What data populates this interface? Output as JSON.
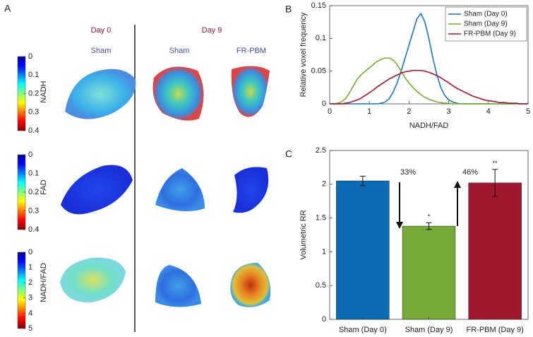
{
  "panel_a": {
    "label": "A",
    "groups": [
      {
        "title": "Day 0",
        "columns": [
          "Sham"
        ]
      },
      {
        "title": "Day 9",
        "columns": [
          "Sham",
          "FR-PBM"
        ]
      }
    ],
    "colorbars": [
      {
        "label": "NADH",
        "lim": [
          0,
          0.4
        ],
        "ticks": [
          0,
          0.1,
          0.2,
          0.3,
          0.4
        ]
      },
      {
        "label": "FAD",
        "lim": [
          0,
          0.4
        ],
        "ticks": [
          0,
          0.1,
          0.2,
          0.3,
          0.4
        ]
      },
      {
        "label": "NADH/FAD",
        "lim": [
          0,
          5
        ],
        "ticks": [
          0,
          1,
          2,
          3,
          4,
          5
        ]
      }
    ]
  },
  "chart_data": [
    {
      "type": "line",
      "label": "B",
      "xlabel": "NADH/FAD",
      "ylabel": "Relative voxel frequency",
      "x": [
        0,
        0.1,
        0.2,
        0.3,
        0.4,
        0.5,
        0.6,
        0.7,
        0.8,
        0.9,
        1,
        1.1,
        1.2,
        1.3,
        1.4,
        1.5,
        1.6,
        1.7,
        1.8,
        1.9,
        2,
        2.1,
        2.2,
        2.3,
        2.4,
        2.5,
        2.6,
        2.7,
        2.8,
        2.9,
        3,
        3.1,
        3.2,
        3.3,
        3.4,
        3.5,
        3.6,
        3.7,
        3.8,
        3.9,
        4,
        4.1,
        4.2,
        4.3,
        4.4,
        4.5,
        4.6,
        4.7,
        4.8,
        4.9,
        5
      ],
      "series": [
        {
          "name": "Sham (Day 0)",
          "color": "#1f72bd",
          "values": [
            0,
            0,
            0,
            0,
            0,
            0,
            0,
            0,
            0,
            0,
            0,
            0,
            0,
            0.001,
            0.003,
            0.008,
            0.018,
            0.032,
            0.05,
            0.07,
            0.09,
            0.11,
            0.13,
            0.138,
            0.125,
            0.1,
            0.07,
            0.045,
            0.025,
            0.013,
            0.006,
            0.003,
            0.001,
            0,
            0,
            0,
            0,
            0,
            0,
            0,
            0,
            0,
            0,
            0,
            0,
            0,
            0,
            0,
            0,
            0,
            0
          ]
        },
        {
          "name": "Sham (Day 9)",
          "color": "#77ac30",
          "values": [
            0,
            0,
            0.001,
            0.003,
            0.008,
            0.017,
            0.028,
            0.038,
            0.045,
            0.05,
            0.055,
            0.06,
            0.065,
            0.068,
            0.07,
            0.07,
            0.067,
            0.06,
            0.05,
            0.04,
            0.032,
            0.025,
            0.019,
            0.014,
            0.01,
            0.007,
            0.005,
            0.003,
            0.002,
            0.001,
            0.001,
            0,
            0,
            0,
            0,
            0,
            0,
            0,
            0,
            0,
            0,
            0,
            0,
            0,
            0,
            0,
            0,
            0,
            0,
            0,
            0
          ]
        },
        {
          "name": "FR-PBM (Day 9)",
          "color": "#a2142f",
          "values": [
            0,
            0,
            0,
            0,
            0.001,
            0.002,
            0.004,
            0.006,
            0.009,
            0.013,
            0.017,
            0.021,
            0.026,
            0.03,
            0.034,
            0.038,
            0.041,
            0.044,
            0.047,
            0.049,
            0.05,
            0.051,
            0.051,
            0.051,
            0.05,
            0.048,
            0.046,
            0.043,
            0.04,
            0.036,
            0.032,
            0.028,
            0.024,
            0.021,
            0.018,
            0.015,
            0.012,
            0.01,
            0.008,
            0.006,
            0.005,
            0.004,
            0.003,
            0.002,
            0.002,
            0.001,
            0.001,
            0.001,
            0,
            0,
            0
          ]
        }
      ],
      "xlim": [
        0,
        5
      ],
      "xticks": [
        0,
        1,
        2,
        3,
        4,
        5
      ],
      "ylim": [
        0,
        0.15
      ],
      "yticks": [
        0,
        0.05,
        0.1,
        0.15
      ],
      "legend": "north-east"
    },
    {
      "type": "bar",
      "label": "C",
      "ylabel": "Volumetric RR",
      "categories": [
        "Sham (Day 0)",
        "Sham (Day 9)",
        "FR-PBM (Day 9)"
      ],
      "values": [
        2.05,
        1.38,
        2.02
      ],
      "errors": [
        0.07,
        0.05,
        0.2
      ],
      "colors": [
        "#0b6cb5",
        "#76a83a",
        "#a0182f"
      ],
      "ylim": [
        0,
        2.5
      ],
      "yticks": [
        0,
        0.5,
        1,
        1.5,
        2,
        2.5
      ],
      "annotations": [
        "33%",
        "46%",
        "*",
        "**"
      ]
    }
  ]
}
